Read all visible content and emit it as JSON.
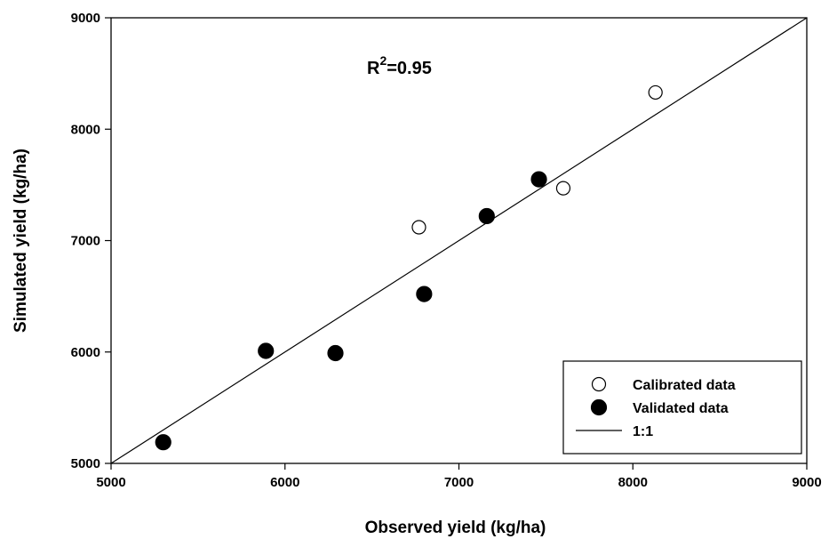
{
  "chart_data": {
    "type": "scatter",
    "title": "",
    "xlabel": "Observed yield (kg/ha)",
    "ylabel": "Simulated yield (kg/ha)",
    "xlim": [
      5000,
      9000
    ],
    "ylim": [
      5000,
      9000
    ],
    "xticks": [
      "5000",
      "6000",
      "7000",
      "8000",
      "9000"
    ],
    "yticks": [
      "5000",
      "6000",
      "7000",
      "8000",
      "9000"
    ],
    "grid": false,
    "legend_position": "bottom-right",
    "annotation": {
      "base": "R",
      "sup": "2",
      "rest": "=0.95"
    },
    "series": [
      {
        "name": "Calibrated data",
        "marker": "open-circle",
        "points": [
          {
            "x": 6770,
            "y": 7120
          },
          {
            "x": 7600,
            "y": 7470
          },
          {
            "x": 8130,
            "y": 8330
          }
        ]
      },
      {
        "name": "Validated data",
        "marker": "filled-circle",
        "points": [
          {
            "x": 5300,
            "y": 5190
          },
          {
            "x": 5890,
            "y": 6010
          },
          {
            "x": 6290,
            "y": 5990
          },
          {
            "x": 6800,
            "y": 6520
          },
          {
            "x": 7160,
            "y": 7220
          },
          {
            "x": 7460,
            "y": 7550
          }
        ]
      },
      {
        "name": "1:1",
        "marker": "line",
        "points": [
          {
            "x": 5000,
            "y": 5000
          },
          {
            "x": 9000,
            "y": 9000
          }
        ]
      }
    ]
  },
  "colors": {
    "axis": "#000000",
    "marker_fill": "#000000",
    "open_marker_fill": "#ffffff"
  }
}
